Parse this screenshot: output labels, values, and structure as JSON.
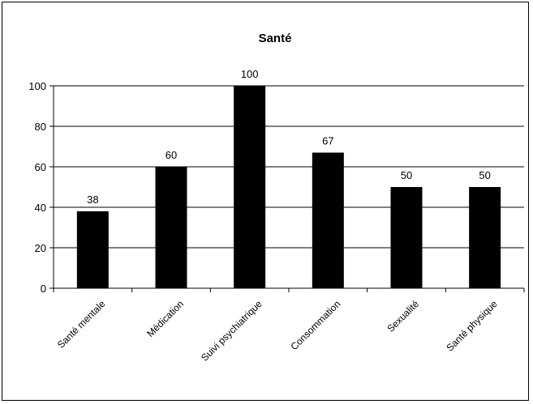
{
  "chart_data": {
    "type": "bar",
    "title": "Santé",
    "categories": [
      "Santé mentale",
      "Médication",
      "Suivi psychiatrique",
      "Consommation",
      "Sexualité",
      "Santé physique"
    ],
    "values": [
      38,
      60,
      100,
      67,
      50,
      50
    ],
    "data_labels": [
      "38",
      "60",
      "100",
      "67",
      "50",
      "50"
    ],
    "ylim": [
      0,
      100
    ],
    "yticks": [
      0,
      20,
      40,
      60,
      80,
      100
    ],
    "grid": true,
    "legend": "none",
    "colors": {
      "bar": "#000000",
      "grid": "#000000",
      "background": "#ffffff"
    }
  }
}
